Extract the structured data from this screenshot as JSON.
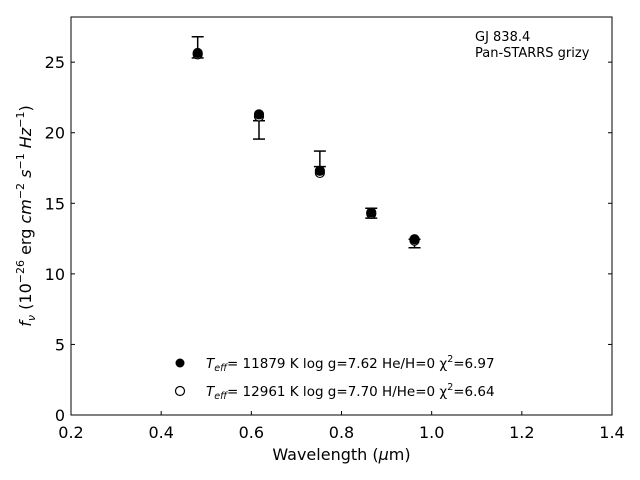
{
  "chart_data": {
    "type": "scatter",
    "title": "",
    "annotation": [
      "GJ 838.4",
      "Pan-STARRS grizy"
    ],
    "xlabel": "Wavelength (μm)",
    "ylabel": "f_ν (10^-26 erg cm^-2 s^-1 Hz^-1)",
    "xlim": [
      0.2,
      1.4
    ],
    "ylim": [
      0,
      28.2
    ],
    "xticks": [
      0.2,
      0.4,
      0.6,
      0.8,
      1.0,
      1.2,
      1.4
    ],
    "xtick_labels": [
      "0.2",
      "0.4",
      "0.6",
      "0.8",
      "1.0",
      "1.2",
      "1.4"
    ],
    "yticks": [
      0,
      5,
      10,
      15,
      20,
      25
    ],
    "ytick_labels": [
      "0",
      "5",
      "10",
      "15",
      "20",
      "25"
    ],
    "grid": false,
    "observed": {
      "x": [
        0.481,
        0.617,
        0.752,
        0.866,
        0.962
      ],
      "y": [
        26.05,
        20.2,
        18.15,
        14.3,
        12.15
      ],
      "yerr": [
        0.75,
        0.65,
        0.55,
        0.35,
        0.3
      ]
    },
    "series": [
      {
        "name": "T_eff= 11879 K  log g=7.62  He/H=0  χ²=6.97",
        "marker": "filled-circle",
        "x": [
          0.481,
          0.617,
          0.752,
          0.866,
          0.962
        ],
        "y": [
          25.65,
          21.3,
          17.3,
          14.35,
          12.45
        ]
      },
      {
        "name": "T_eff= 12961 K  log g=7.70  H/He=0  χ²=6.64",
        "marker": "open-circle",
        "x": [
          0.481,
          0.617,
          0.752,
          0.866,
          0.962
        ],
        "y": [
          25.55,
          21.15,
          17.15,
          14.25,
          12.35
        ]
      }
    ],
    "legend": {
      "placement": "lower-center",
      "entries": [
        {
          "marker": "filled-circle",
          "teff_label": "T",
          "teff_sub": "eff",
          "text": "= 11879 K  log g=7.62  He/H=0  χ",
          "chi_sup": "2",
          "chi_val": "=6.97"
        },
        {
          "marker": "open-circle",
          "teff_label": "T",
          "teff_sub": "eff",
          "text": "= 12961 K  log g=7.70  H/He=0  χ",
          "chi_sup": "2",
          "chi_val": "=6.64"
        }
      ]
    },
    "colors": {
      "marker": "#000000",
      "axes": "#000000",
      "background": "#ffffff"
    }
  }
}
